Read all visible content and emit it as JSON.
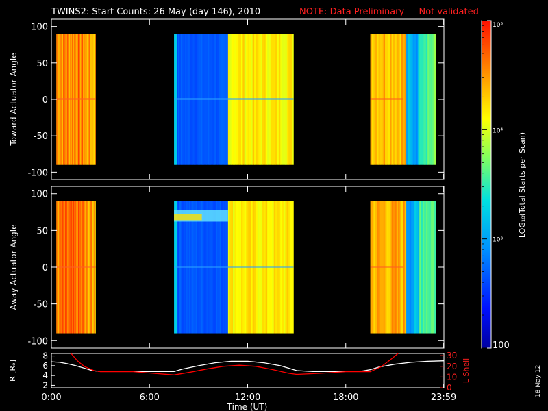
{
  "title": "TWINS2: Start Counts: 26 May (day 146), 2010",
  "note": "NOTE: Data Preliminary — Not validated",
  "date_stamp": "18 May 12",
  "colorbar": {
    "label": "LOG₁₀(Total Starts per Scan)",
    "tick_labels": [
      "10⁵",
      "10⁴",
      "10³",
      "100"
    ]
  },
  "chart_data": [
    {
      "type": "heatmap",
      "ylabel": "Toward Actuator Angle",
      "ylim": [
        -110,
        110
      ],
      "yticks": [
        100,
        50,
        0,
        -50,
        -100
      ],
      "xlim": [
        0,
        24
      ],
      "xtick_labels": [
        "0:00",
        "6:00",
        "12:00",
        "18:00",
        "23:59"
      ],
      "data_segments": [
        {
          "start": 0.3,
          "end": 2.7,
          "y_range": [
            -90,
            90
          ],
          "level": "high (~10^4.5)"
        },
        {
          "start": 7.5,
          "end": 10.8,
          "y_range": [
            -90,
            90
          ],
          "level": "low (~10^2.5)"
        },
        {
          "start": 10.8,
          "end": 14.8,
          "y_range": [
            -90,
            90
          ],
          "level": "high (~10^4)"
        },
        {
          "start": 19.5,
          "end": 23.5,
          "y_range": [
            -90,
            90
          ],
          "level": "mixed (~10^3.5-10^4.5)"
        }
      ],
      "colorscale": "rainbow",
      "zlim": [
        100,
        100000
      ],
      "z_log": true
    },
    {
      "type": "heatmap",
      "ylabel": "Away Actuator Angle",
      "ylim": [
        -110,
        110
      ],
      "yticks": [
        100,
        50,
        0,
        -50,
        -100
      ],
      "xlim": [
        0,
        24
      ],
      "xtick_labels": [
        "0:00",
        "6:00",
        "12:00",
        "18:00",
        "23:59"
      ],
      "data_segments": [
        {
          "start": 0.3,
          "end": 2.7,
          "y_range": [
            -90,
            90
          ],
          "level": "high (~10^4.5)"
        },
        {
          "start": 7.5,
          "end": 10.8,
          "y_range": [
            -90,
            90
          ],
          "level": "low (~10^2.5)"
        },
        {
          "start": 10.8,
          "end": 14.8,
          "y_range": [
            -90,
            90
          ],
          "level": "high (~10^4)"
        },
        {
          "start": 19.5,
          "end": 23.5,
          "y_range": [
            -90,
            90
          ],
          "level": "mixed (~10^3.5-10^4.5)"
        }
      ],
      "colorscale": "rainbow",
      "zlim": [
        100,
        100000
      ],
      "z_log": true
    },
    {
      "type": "line",
      "xlabel": "Time (UT)",
      "ylabel": "R [Rₑ]",
      "ylabel_right": "L Shell",
      "xlim": [
        0,
        24
      ],
      "ylim": [
        1.5,
        8.5
      ],
      "yticks": [
        8,
        6,
        4,
        2
      ],
      "ylim_right": [
        0,
        32
      ],
      "yticks_right": [
        30,
        20,
        10,
        0
      ],
      "xtick_labels": [
        "0:00",
        "6:00",
        "12:00",
        "18:00",
        "23:59"
      ],
      "series": [
        {
          "color": "#ffffff",
          "x": [
            0,
            0.5,
            1,
            1.5,
            2,
            2.5,
            3,
            4,
            5,
            6,
            7,
            7.5,
            8,
            9,
            10,
            11,
            12,
            13,
            14,
            14.5,
            15,
            16,
            17,
            18,
            19,
            19.5,
            20,
            21,
            22,
            23,
            24
          ],
          "y": [
            6.8,
            6.7,
            6.4,
            6.0,
            5.5,
            5.0,
            4.8,
            4.8,
            4.8,
            4.8,
            4.8,
            4.8,
            5.3,
            6.0,
            6.6,
            6.9,
            6.9,
            6.6,
            6.0,
            5.5,
            5.0,
            4.8,
            4.8,
            4.8,
            4.9,
            5.2,
            5.7,
            6.3,
            6.7,
            6.9,
            7.0
          ]
        },
        {
          "color": "#ff0000",
          "axis": "right",
          "x": [
            1.2,
            1.6,
            2.0,
            2.6,
            3.0,
            5.0,
            7.5,
            8.5,
            9.5,
            10.5,
            11.5,
            12.5,
            13.5,
            14.5,
            15.0,
            16.5,
            18.0,
            19.5,
            20.2,
            20.8,
            21.2
          ],
          "y": [
            32,
            25,
            20,
            16,
            15,
            15,
            12,
            14.5,
            17.5,
            20,
            21,
            20,
            17,
            13.5,
            12.5,
            13.5,
            15,
            15,
            20,
            27,
            32
          ]
        }
      ]
    }
  ]
}
